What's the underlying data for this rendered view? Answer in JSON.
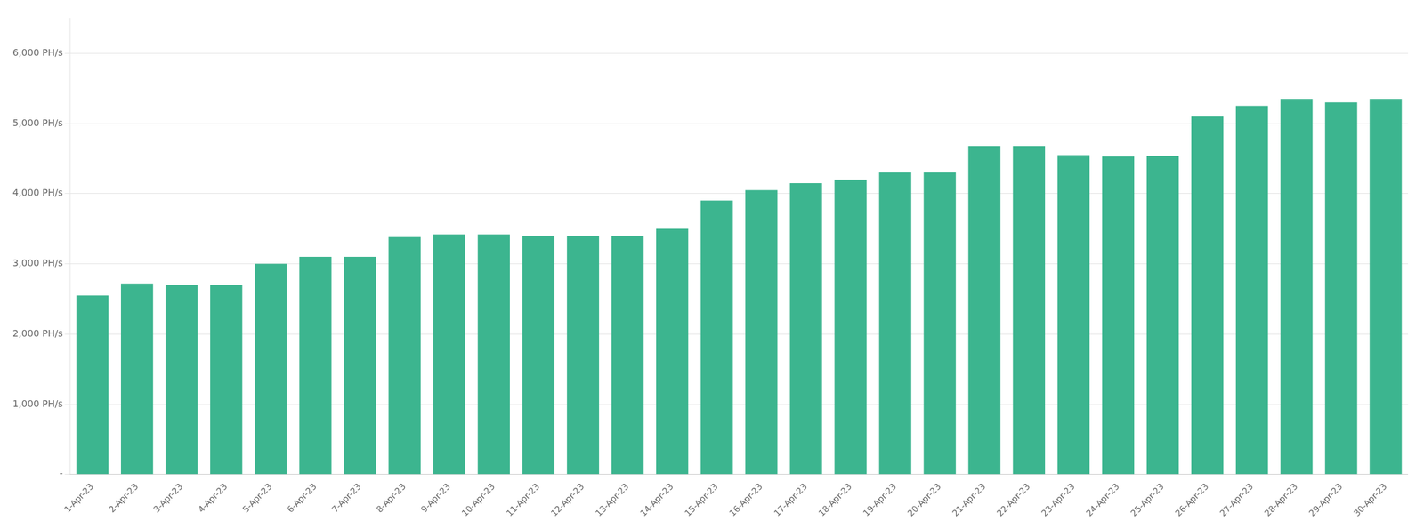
{
  "chart_data": {
    "type": "bar",
    "categories": [
      "1-Apr-23",
      "2-Apr-23",
      "3-Apr-23",
      "4-Apr-23",
      "5-Apr-23",
      "6-Apr-23",
      "7-Apr-23",
      "8-Apr-23",
      "9-Apr-23",
      "10-Apr-23",
      "11-Apr-23",
      "12-Apr-23",
      "13-Apr-23",
      "14-Apr-23",
      "15-Apr-23",
      "16-Apr-23",
      "17-Apr-23",
      "18-Apr-23",
      "19-Apr-23",
      "20-Apr-23",
      "21-Apr-23",
      "22-Apr-23",
      "23-Apr-23",
      "24-Apr-23",
      "25-Apr-23",
      "26-Apr-23",
      "27-Apr-23",
      "28-Apr-23",
      "29-Apr-23",
      "30-Apr-23"
    ],
    "values": [
      2550,
      2720,
      2700,
      2700,
      3000,
      3100,
      3100,
      3380,
      3420,
      3420,
      3400,
      3400,
      3400,
      3500,
      3900,
      4050,
      4150,
      4200,
      4300,
      4300,
      4680,
      4680,
      4550,
      4530,
      4540,
      5100,
      5250,
      5350,
      5300,
      5350
    ],
    "color": "#3cb58f",
    "ylim": [
      0,
      6500
    ],
    "yticks": [
      {
        "value": 0,
        "label": "-"
      },
      {
        "value": 1000,
        "label": "1,000 PH/s"
      },
      {
        "value": 2000,
        "label": "2,000 PH/s"
      },
      {
        "value": 3000,
        "label": "3,000 PH/s"
      },
      {
        "value": 4000,
        "label": "4,000 PH/s"
      },
      {
        "value": 5000,
        "label": "5,000 PH/s"
      },
      {
        "value": 6000,
        "label": "6,000 PH/s"
      }
    ],
    "grid": true
  }
}
